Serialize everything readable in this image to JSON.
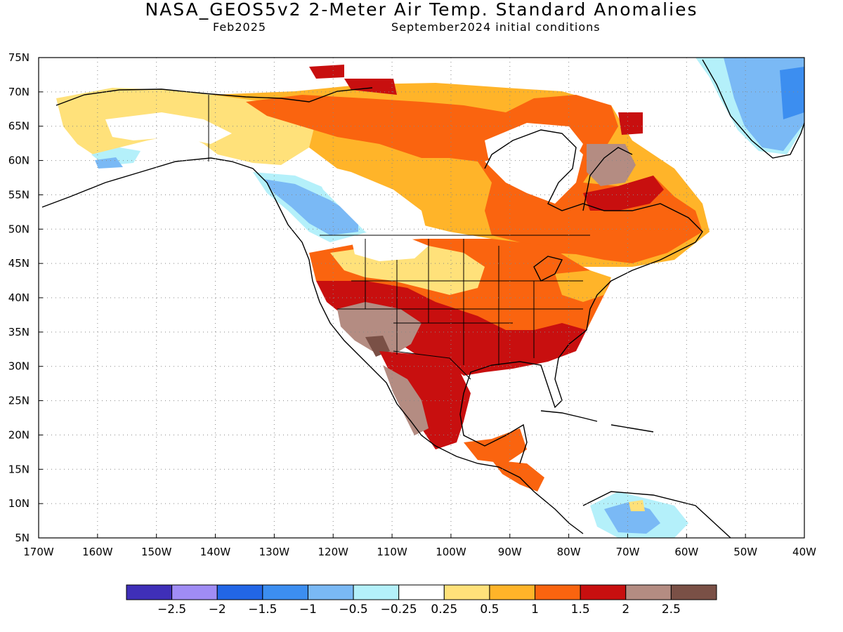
{
  "header": {
    "title": "NASA_GEOS5v2 2-Meter Air Temp. Standard Anomalies",
    "month": "Feb2025",
    "init": "September2024 initial conditions"
  },
  "map": {
    "lat_labels": [
      "75N",
      "70N",
      "65N",
      "60N",
      "55N",
      "50N",
      "45N",
      "40N",
      "35N",
      "30N",
      "25N",
      "20N",
      "15N",
      "10N",
      "5N"
    ],
    "lon_labels": [
      "170W",
      "160W",
      "150W",
      "140W",
      "130W",
      "120W",
      "110W",
      "100W",
      "90W",
      "80W",
      "70W",
      "60W",
      "50W",
      "40W"
    ]
  },
  "colorbar": {
    "colors": [
      "#3f2fb8",
      "#a08cf5",
      "#2266e6",
      "#3c8ef0",
      "#7ab9f5",
      "#b4f0fa",
      "#ffffff",
      "#ffe17a",
      "#ffb429",
      "#fa640f",
      "#c80f0f",
      "#b48c82",
      "#7a5046"
    ],
    "labels": [
      "−2.5",
      "−2",
      "−1.5",
      "−1",
      "−0.5",
      "−0.25",
      "0.25",
      "0.5",
      "1",
      "1.5",
      "2",
      "2.5"
    ]
  },
  "legend_colors": {
    "land_outline": "#000000",
    "grid": "#888888"
  }
}
